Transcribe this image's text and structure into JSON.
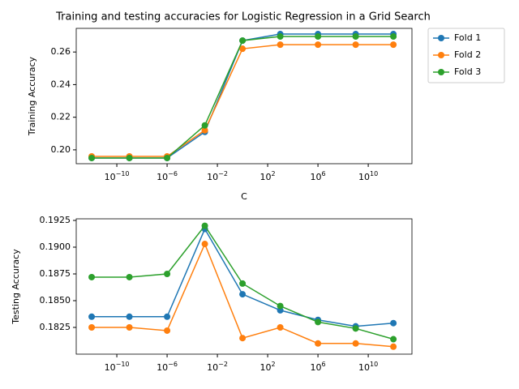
{
  "chart_data": [
    {
      "type": "line",
      "title": "Training and testing accuracies for Logistic Regression in a Grid Search",
      "xlabel": "C",
      "ylabel": "Training Accuracy",
      "xscale": "log",
      "x": [
        1e-12,
        1e-09,
        1e-06,
        0.001,
        1,
        1000,
        1000000,
        1000000000,
        1000000000000
      ],
      "xlim": [
        5.9e-14,
        30000000000000.0
      ],
      "xticks": [
        {
          "value": 1e-10,
          "label": "10−10"
        },
        {
          "value": 1e-06,
          "label": "10−6"
        },
        {
          "value": 0.01,
          "label": "10−2"
        },
        {
          "value": 100,
          "label": "102"
        },
        {
          "value": 1000000,
          "label": "106"
        },
        {
          "value": 10000000000,
          "label": "1010"
        }
      ],
      "ylim": [
        0.1915,
        0.2745
      ],
      "yticks": [
        {
          "value": 0.2,
          "label": "0.20"
        },
        0.22,
        0.24,
        0.26
      ],
      "legend": "outside-upper-right",
      "series": [
        {
          "name": "Fold 1",
          "color": "#1f77b4",
          "values": [
            0.195,
            0.195,
            0.195,
            0.211,
            0.267,
            0.271,
            0.271,
            0.271,
            0.271
          ]
        },
        {
          "name": "Fold 2",
          "color": "#ff7f0e",
          "values": [
            0.196,
            0.196,
            0.196,
            0.212,
            0.262,
            0.2645,
            0.2645,
            0.2645,
            0.2645
          ]
        },
        {
          "name": "Fold 3",
          "color": "#2ca02c",
          "values": [
            0.195,
            0.195,
            0.195,
            0.215,
            0.267,
            0.2695,
            0.2695,
            0.2695,
            0.2695
          ]
        }
      ]
    },
    {
      "type": "line",
      "ylabel": "Testing Accuracy",
      "xscale": "log",
      "x": [
        1e-12,
        1e-09,
        1e-06,
        0.001,
        1,
        1000,
        1000000,
        1000000000,
        1000000000000
      ],
      "xlim": [
        5.9e-14,
        30000000000000.0
      ],
      "xticks": [
        {
          "value": 1e-10,
          "label": "10−10"
        },
        {
          "value": 1e-06,
          "label": "10−6"
        },
        {
          "value": 0.01,
          "label": "10−2"
        },
        {
          "value": 100,
          "label": "102"
        },
        {
          "value": 1000000,
          "label": "106"
        },
        {
          "value": 10000000000,
          "label": "1010"
        }
      ],
      "ylim": [
        0.18,
        0.19265
      ],
      "yticks": [
        0.1825,
        {
          "value": 0.185,
          "label": "0.1850"
        },
        0.1875,
        {
          "value": 0.19,
          "label": "0.1900"
        },
        0.1925
      ],
      "series": [
        {
          "name": "Fold 1",
          "color": "#1f77b4",
          "values": [
            0.1835,
            0.1835,
            0.1835,
            0.1917,
            0.1856,
            0.1841,
            0.1832,
            0.1826,
            0.1829
          ]
        },
        {
          "name": "Fold 2",
          "color": "#ff7f0e",
          "values": [
            0.1825,
            0.1825,
            0.1822,
            0.1903,
            0.1815,
            0.1825,
            0.181,
            0.181,
            0.1807
          ]
        },
        {
          "name": "Fold 3",
          "color": "#2ca02c",
          "values": [
            0.1872,
            0.1872,
            0.1875,
            0.192,
            0.1866,
            0.1845,
            0.183,
            0.1824,
            0.1814
          ]
        }
      ]
    }
  ]
}
